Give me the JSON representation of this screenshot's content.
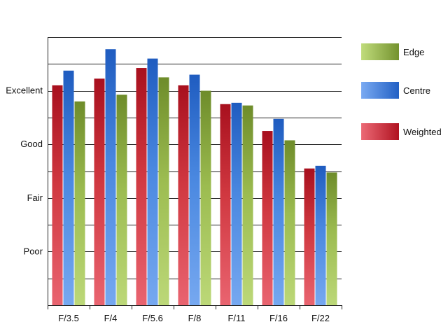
{
  "chart_data": {
    "type": "bar",
    "categories": [
      "F/3.5",
      "F/4",
      "F/5.6",
      "F/8",
      "F/11",
      "F/16",
      "F/22"
    ],
    "y_tick_labels": [
      {
        "value": 2,
        "label": "Poor"
      },
      {
        "value": 4,
        "label": "Fair"
      },
      {
        "value": 6,
        "label": "Good"
      },
      {
        "value": 8,
        "label": "Excellent"
      }
    ],
    "ylim": [
      0,
      10
    ],
    "grid": true,
    "legend_position": "right",
    "series": [
      {
        "name": "Weighted",
        "color": "#c0202c",
        "values": [
          8.2,
          8.45,
          8.85,
          8.2,
          7.5,
          6.5,
          5.1
        ]
      },
      {
        "name": "Centre",
        "color": "#2a6fd0",
        "values": [
          8.75,
          9.55,
          9.2,
          8.6,
          7.55,
          6.95,
          5.2
        ]
      },
      {
        "name": "Edge",
        "color": "#86a83a",
        "values": [
          7.6,
          7.85,
          8.5,
          8.0,
          7.45,
          6.15,
          4.95
        ]
      }
    ],
    "legend_order": [
      "Edge",
      "Centre",
      "Weighted"
    ]
  }
}
